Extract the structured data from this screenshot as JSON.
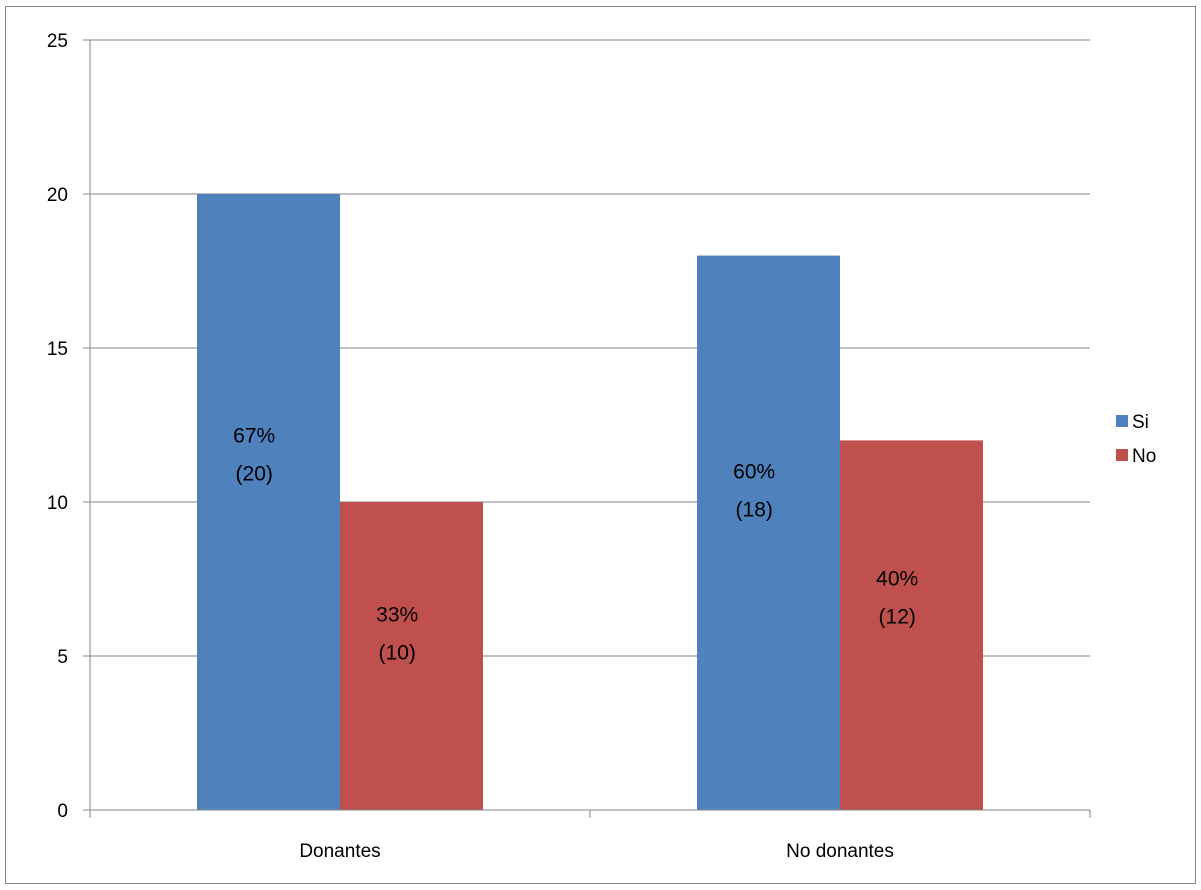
{
  "chart_data": {
    "type": "bar",
    "title": "",
    "xlabel": "",
    "ylabel": "",
    "categories": [
      "Donantes",
      "No donantes"
    ],
    "ylim": [
      0,
      25
    ],
    "yticks": [
      0,
      5,
      10,
      15,
      20,
      25
    ],
    "grid": true,
    "legend": "right",
    "series": [
      {
        "name": "Si",
        "color": "#4f81bd",
        "values": [
          20,
          18
        ],
        "labels": [
          {
            "percent": "67%",
            "count": "(20)"
          },
          {
            "percent": "60%",
            "count": "(18)"
          }
        ]
      },
      {
        "name": "No",
        "color": "#c0504d",
        "values": [
          10,
          12
        ],
        "labels": [
          {
            "percent": "33%",
            "count": "(10)"
          },
          {
            "percent": "40%",
            "count": "(12)"
          }
        ]
      }
    ]
  }
}
